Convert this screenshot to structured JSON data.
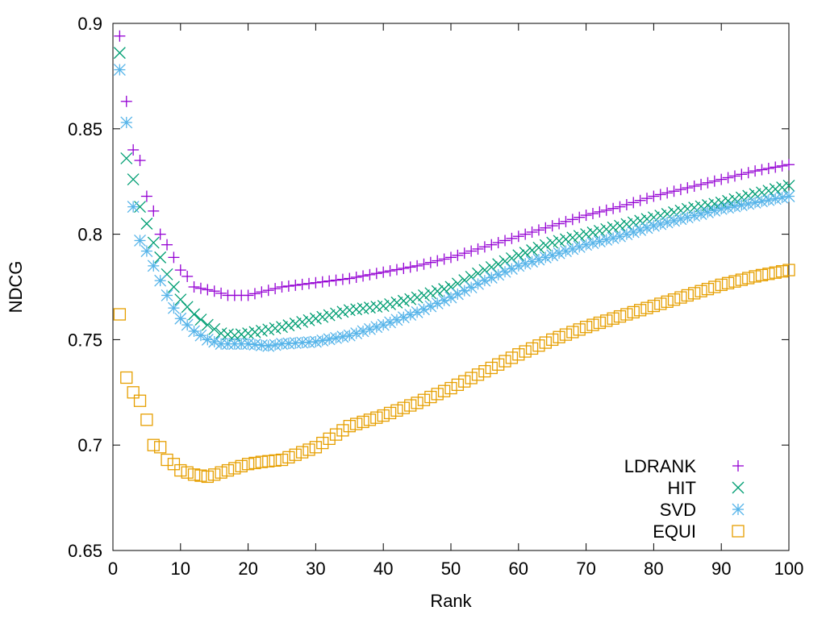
{
  "chart_data": {
    "type": "scatter",
    "title": "",
    "xlabel": "Rank",
    "ylabel": "NDCG",
    "xlim": [
      0,
      100
    ],
    "ylim": [
      0.65,
      0.9
    ],
    "xticks": [
      0,
      10,
      20,
      30,
      40,
      50,
      60,
      70,
      80,
      90,
      100
    ],
    "yticks": [
      0.65,
      0.7,
      0.75,
      0.8,
      0.85,
      0.9
    ],
    "xtick_labels": [
      "0",
      "10",
      "20",
      "30",
      "40",
      "50",
      "60",
      "70",
      "80",
      "90",
      "100"
    ],
    "ytick_labels": [
      "0.65",
      "0.7",
      "0.75",
      "0.8",
      "0.85",
      "0.9"
    ],
    "grid": false,
    "legend_position": "bottom-right",
    "series": [
      {
        "name": "LDRANK",
        "marker": "plus",
        "color": "#9400d3",
        "anchors": [
          [
            1,
            0.894
          ],
          [
            2,
            0.863
          ],
          [
            3,
            0.84
          ],
          [
            4,
            0.835
          ],
          [
            5,
            0.818
          ],
          [
            6,
            0.811
          ],
          [
            7,
            0.8
          ],
          [
            8,
            0.795
          ],
          [
            9,
            0.789
          ],
          [
            10,
            0.783
          ],
          [
            11,
            0.78
          ],
          [
            12,
            0.775
          ],
          [
            15,
            0.773
          ],
          [
            17,
            0.771
          ],
          [
            20,
            0.771
          ],
          [
            25,
            0.775
          ],
          [
            30,
            0.777
          ],
          [
            35,
            0.779
          ],
          [
            40,
            0.782
          ],
          [
            45,
            0.785
          ],
          [
            50,
            0.789
          ],
          [
            55,
            0.794
          ],
          [
            60,
            0.799
          ],
          [
            65,
            0.804
          ],
          [
            70,
            0.809
          ],
          [
            75,
            0.813
          ],
          [
            80,
            0.818
          ],
          [
            85,
            0.822
          ],
          [
            90,
            0.826
          ],
          [
            95,
            0.83
          ],
          [
            100,
            0.833
          ]
        ]
      },
      {
        "name": "HIT",
        "marker": "cross",
        "color": "#009e73",
        "anchors": [
          [
            1,
            0.886
          ],
          [
            2,
            0.836
          ],
          [
            3,
            0.826
          ],
          [
            4,
            0.813
          ],
          [
            5,
            0.805
          ],
          [
            6,
            0.796
          ],
          [
            7,
            0.789
          ],
          [
            8,
            0.781
          ],
          [
            9,
            0.775
          ],
          [
            10,
            0.769
          ],
          [
            12,
            0.762
          ],
          [
            14,
            0.757
          ],
          [
            16,
            0.753
          ],
          [
            18,
            0.752
          ],
          [
            20,
            0.753
          ],
          [
            25,
            0.756
          ],
          [
            30,
            0.76
          ],
          [
            35,
            0.764
          ],
          [
            40,
            0.766
          ],
          [
            45,
            0.77
          ],
          [
            50,
            0.775
          ],
          [
            55,
            0.783
          ],
          [
            60,
            0.79
          ],
          [
            65,
            0.796
          ],
          [
            70,
            0.8
          ],
          [
            75,
            0.804
          ],
          [
            80,
            0.808
          ],
          [
            85,
            0.812
          ],
          [
            90,
            0.815
          ],
          [
            95,
            0.819
          ],
          [
            100,
            0.823
          ]
        ]
      },
      {
        "name": "SVD",
        "marker": "star",
        "color": "#56b4e9",
        "anchors": [
          [
            1,
            0.878
          ],
          [
            2,
            0.853
          ],
          [
            3,
            0.813
          ],
          [
            4,
            0.797
          ],
          [
            5,
            0.792
          ],
          [
            6,
            0.785
          ],
          [
            7,
            0.778
          ],
          [
            8,
            0.771
          ],
          [
            9,
            0.765
          ],
          [
            10,
            0.76
          ],
          [
            12,
            0.754
          ],
          [
            14,
            0.75
          ],
          [
            16,
            0.748
          ],
          [
            18,
            0.748
          ],
          [
            20,
            0.748
          ],
          [
            23,
            0.747
          ],
          [
            25,
            0.748
          ],
          [
            30,
            0.749
          ],
          [
            35,
            0.752
          ],
          [
            40,
            0.757
          ],
          [
            45,
            0.763
          ],
          [
            50,
            0.77
          ],
          [
            55,
            0.778
          ],
          [
            60,
            0.785
          ],
          [
            65,
            0.79
          ],
          [
            70,
            0.795
          ],
          [
            75,
            0.799
          ],
          [
            80,
            0.804
          ],
          [
            85,
            0.808
          ],
          [
            90,
            0.812
          ],
          [
            95,
            0.815
          ],
          [
            100,
            0.818
          ]
        ]
      },
      {
        "name": "EQUI",
        "marker": "square",
        "color": "#e69f00",
        "anchors": [
          [
            1,
            0.762
          ],
          [
            2,
            0.732
          ],
          [
            3,
            0.725
          ],
          [
            4,
            0.721
          ],
          [
            5,
            0.712
          ],
          [
            6,
            0.7
          ],
          [
            7,
            0.699
          ],
          [
            8,
            0.693
          ],
          [
            9,
            0.691
          ],
          [
            10,
            0.688
          ],
          [
            12,
            0.686
          ],
          [
            14,
            0.685
          ],
          [
            16,
            0.687
          ],
          [
            18,
            0.689
          ],
          [
            20,
            0.691
          ],
          [
            22,
            0.692
          ],
          [
            25,
            0.693
          ],
          [
            30,
            0.699
          ],
          [
            35,
            0.709
          ],
          [
            40,
            0.714
          ],
          [
            45,
            0.72
          ],
          [
            50,
            0.727
          ],
          [
            55,
            0.735
          ],
          [
            60,
            0.743
          ],
          [
            65,
            0.75
          ],
          [
            70,
            0.756
          ],
          [
            75,
            0.761
          ],
          [
            80,
            0.766
          ],
          [
            85,
            0.771
          ],
          [
            90,
            0.776
          ],
          [
            95,
            0.78
          ],
          [
            100,
            0.783
          ]
        ]
      }
    ]
  }
}
